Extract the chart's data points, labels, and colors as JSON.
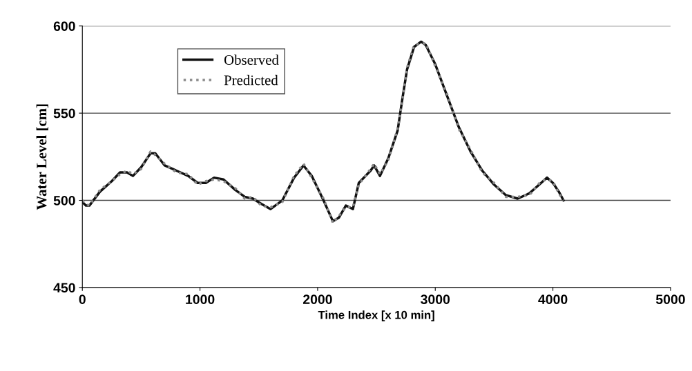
{
  "chart_data": {
    "type": "line",
    "xlabel": "Time Index [x 10 min]",
    "ylabel": "Water Level [cm]",
    "xlim": [
      0,
      5000
    ],
    "xticks": [
      0,
      1000,
      2000,
      3000,
      4000,
      5000
    ],
    "ylim": [
      450,
      600
    ],
    "yticks": [
      450,
      500,
      550,
      600
    ],
    "grid": "y",
    "legend": "top left",
    "series": [
      {
        "name": "Observed",
        "color": "#111111",
        "line_style": "solid",
        "x": [
          0,
          30,
          60,
          150,
          250,
          320,
          380,
          430,
          500,
          580,
          620,
          700,
          800,
          900,
          980,
          1050,
          1120,
          1200,
          1300,
          1380,
          1450,
          1520,
          1600,
          1700,
          1800,
          1880,
          1950,
          2050,
          2130,
          2180,
          2240,
          2300,
          2350,
          2450,
          2480,
          2530,
          2600,
          2680,
          2720,
          2760,
          2820,
          2880,
          2920,
          3000,
          3100,
          3200,
          3300,
          3400,
          3500,
          3600,
          3700,
          3800,
          3900,
          3950,
          4000,
          4050,
          4090
        ],
        "values": [
          499,
          497,
          497,
          505,
          511,
          516,
          516,
          514,
          519,
          527,
          527,
          520,
          517,
          514,
          510,
          510,
          513,
          512,
          506,
          502,
          501,
          498,
          495,
          500,
          513,
          520,
          514,
          500,
          488,
          490,
          497,
          495,
          510,
          517,
          520,
          514,
          524,
          540,
          558,
          575,
          588,
          591,
          589,
          578,
          560,
          542,
          528,
          517,
          509,
          503,
          501,
          504,
          510,
          513,
          510,
          505,
          500
        ]
      },
      {
        "name": "Predicted",
        "color": "#8a8a8a",
        "line_style": "dotted",
        "x": [
          0,
          30,
          60,
          150,
          250,
          320,
          380,
          430,
          500,
          580,
          620,
          700,
          800,
          900,
          980,
          1050,
          1120,
          1200,
          1300,
          1380,
          1450,
          1520,
          1600,
          1700,
          1800,
          1880,
          1950,
          2050,
          2130,
          2180,
          2240,
          2300,
          2350,
          2450,
          2480,
          2530,
          2600,
          2680,
          2720,
          2760,
          2820,
          2880,
          2920,
          3000,
          3100,
          3200,
          3300,
          3400,
          3500,
          3600,
          3700,
          3800,
          3900,
          3950,
          4000,
          4050,
          4090
        ],
        "values": [
          500,
          498,
          497,
          506,
          511,
          515,
          517,
          515,
          518,
          528,
          526,
          521,
          516,
          515,
          509,
          511,
          512,
          511,
          507,
          501,
          502,
          497,
          496,
          499,
          514,
          521,
          513,
          501,
          487,
          491,
          496,
          496,
          509,
          518,
          521,
          515,
          523,
          541,
          557,
          576,
          589,
          590,
          590,
          577,
          561,
          541,
          529,
          516,
          510,
          502,
          502,
          503,
          511,
          512,
          511,
          504,
          500
        ]
      }
    ]
  }
}
